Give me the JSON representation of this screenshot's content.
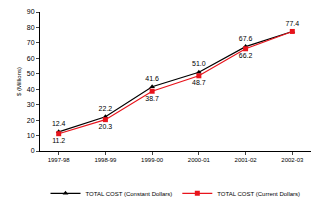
{
  "chart_data": {
    "type": "line",
    "ylabel": "$ (Millions)",
    "categories": [
      "1997-98",
      "1998-99",
      "1999-00",
      "2000-01",
      "2001-02",
      "2002-03"
    ],
    "series": [
      {
        "name": "TOTAL COST (Constant Dollars)",
        "color": "#000000",
        "marker": "triangle-up",
        "values": [
          12.4,
          22.2,
          41.6,
          51.0,
          67.6,
          77.4
        ],
        "value_labels": [
          "12.4",
          "22.2",
          "41.6",
          "51.0",
          "67.6",
          "77.4"
        ]
      },
      {
        "name": "TOTAL COST (Current Dollars)",
        "color": "#e8141c",
        "marker": "square",
        "values": [
          11.2,
          20.3,
          38.7,
          48.7,
          66.2,
          77.4
        ],
        "value_labels": [
          "11.2",
          "20.3",
          "38.7",
          "48.7",
          "66.2",
          null
        ]
      }
    ],
    "ylim": [
      0,
      90
    ],
    "yticks": [
      0,
      10,
      20,
      30,
      40,
      50,
      60,
      70,
      80,
      90
    ],
    "grid": false,
    "legend": "bottom",
    "data_labels": true
  }
}
